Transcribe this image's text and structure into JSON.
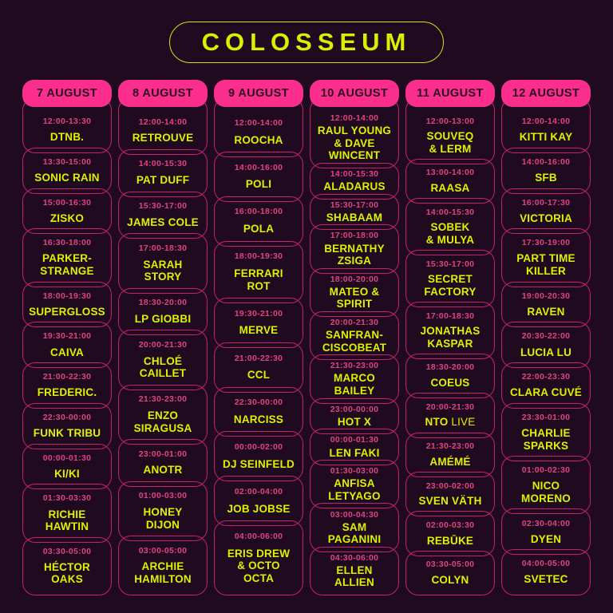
{
  "title": "COLOSSEUM",
  "colors": {
    "background": "#1f0a20",
    "header_pink": "#fb2e8e",
    "border_pink": "#c7206f",
    "time_pink": "#e0447f",
    "chartreuse": "#dcf200",
    "header_text_dark": "#2b0a26"
  },
  "days": [
    {
      "date": "7 AUGUST",
      "slots": [
        {
          "time": "12:00-13:30",
          "name": "DTNB."
        },
        {
          "time": "13:30-15:00",
          "name": "SONIC RAIN"
        },
        {
          "time": "15:00-16:30",
          "name": "ZISKO"
        },
        {
          "time": "16:30-18:00",
          "name": "PARKER-\nSTRANGE"
        },
        {
          "time": "18:00-19:30",
          "name": "SUPERGLOSS"
        },
        {
          "time": "19:30-21:00",
          "name": "CAIVA"
        },
        {
          "time": "21:00-22:30",
          "name": "FREDERIC."
        },
        {
          "time": "22:30-00:00",
          "name": "FUNK TRIBU"
        },
        {
          "time": "00:00-01:30",
          "name": "KI/KI"
        },
        {
          "time": "01:30-03:30",
          "name": "RICHIE\nHAWTIN"
        },
        {
          "time": "03:30-05:00",
          "name": "HÉCTOR\nOAKS"
        }
      ]
    },
    {
      "date": "8 AUGUST",
      "slots": [
        {
          "time": "12:00-14:00",
          "name": "RETROUVE"
        },
        {
          "time": "14:00-15:30",
          "name": "PAT DUFF"
        },
        {
          "time": "15:30-17:00",
          "name": "JAMES COLE"
        },
        {
          "time": "17:00-18:30",
          "name": "SARAH\nSTORY"
        },
        {
          "time": "18:30-20:00",
          "name": "LP GIOBBI"
        },
        {
          "time": "20:00-21:30",
          "name": "CHLOÉ\nCAILLET"
        },
        {
          "time": "21:30-23:00",
          "name": "ENZO\nSIRAGUSA"
        },
        {
          "time": "23:00-01:00",
          "name": "ANOTR"
        },
        {
          "time": "01:00-03:00",
          "name": "HONEY\nDIJON"
        },
        {
          "time": "03:00-05:00",
          "name": "ARCHIE\nHAMILTON"
        }
      ]
    },
    {
      "date": "9 AUGUST",
      "slots": [
        {
          "time": "12:00-14:00",
          "name": "ROOCHA"
        },
        {
          "time": "14:00-16:00",
          "name": "POLI"
        },
        {
          "time": "16:00-18:00",
          "name": "POLA"
        },
        {
          "time": "18:00-19:30",
          "name": "FERRARI\nROT"
        },
        {
          "time": "19:30-21:00",
          "name": "MERVE"
        },
        {
          "time": "21:00-22:30",
          "name": "CCL"
        },
        {
          "time": "22:30-00:00",
          "name": "NARCISS"
        },
        {
          "time": "00:00-02:00",
          "name": "DJ SEINFELD"
        },
        {
          "time": "02:00-04:00",
          "name": "JOB JOBSE"
        },
        {
          "time": "04:00-06:00",
          "name": "ERIS DREW\n& OCTO\nOCTA"
        }
      ]
    },
    {
      "date": "10 AUGUST",
      "slots": [
        {
          "time": "12:00-14:00",
          "name": "RAUL YOUNG\n& DAVE\nWINCENT"
        },
        {
          "time": "14:00-15:30",
          "name": "ALADARUS"
        },
        {
          "time": "15:30-17:00",
          "name": "SHABAAM"
        },
        {
          "time": "17:00-18:00",
          "name": "BERNATHY\nZSIGA"
        },
        {
          "time": "18:00-20:00",
          "name": "MATEO &\nSPIRIT"
        },
        {
          "time": "20:00-21:30",
          "name": "SANFRAN-\nCISCOBEAT"
        },
        {
          "time": "21:30-23:00",
          "name": "MARCO\nBAILEY"
        },
        {
          "time": "23:00-00:00",
          "name": "HOT X"
        },
        {
          "time": "00:00-01:30",
          "name": "LEN FAKI"
        },
        {
          "time": "01:30-03:00",
          "name": "ANFISA\nLETYAGO"
        },
        {
          "time": "03:00-04:30",
          "name": "SAM\nPAGANINI"
        },
        {
          "time": "04:30-06:00",
          "name": "ELLEN\nALLIEN"
        }
      ]
    },
    {
      "date": "11 AUGUST",
      "slots": [
        {
          "time": "12:00-13:00",
          "name": "SOUVEQ\n& LERM"
        },
        {
          "time": "13:00-14:00",
          "name": "RAASA"
        },
        {
          "time": "14:00-15:30",
          "name": "SOBEK\n& MULYA"
        },
        {
          "time": "15:30-17:00",
          "name": "SECRET\nFACTORY"
        },
        {
          "time": "17:00-18:30",
          "name": "JONATHAS\nKASPAR"
        },
        {
          "time": "18:30-20:00",
          "name": "COEUS"
        },
        {
          "time": "20:00-21:30",
          "name": "NTO",
          "tag": "LIVE"
        },
        {
          "time": "21:30-23:00",
          "name": "AMÉMÉ"
        },
        {
          "time": "23:00-02:00",
          "name": "SVEN VÄTH"
        },
        {
          "time": "02:00-03:30",
          "name": "REBŪKE"
        },
        {
          "time": "03:30-05:00",
          "name": "COLYN"
        }
      ]
    },
    {
      "date": "12 AUGUST",
      "slots": [
        {
          "time": "12:00-14:00",
          "name": "KITTI KAY"
        },
        {
          "time": "14:00-16:00",
          "name": "SFB"
        },
        {
          "time": "16:00-17:30",
          "name": "VICTORIA"
        },
        {
          "time": "17:30-19:00",
          "name": "PART TIME\nKILLER"
        },
        {
          "time": "19:00-20:30",
          "name": "RAVEN"
        },
        {
          "time": "20:30-22:00",
          "name": "LUCIA LU"
        },
        {
          "time": "22:00-23:30",
          "name": "CLARA CUVÉ"
        },
        {
          "time": "23:30-01:00",
          "name": "CHARLIE\nSPARKS"
        },
        {
          "time": "01:00-02:30",
          "name": "NICO\nMORENO"
        },
        {
          "time": "02:30-04:00",
          "name": "DYEN"
        },
        {
          "time": "04:00-05:00",
          "name": "SVETEC"
        }
      ]
    }
  ]
}
